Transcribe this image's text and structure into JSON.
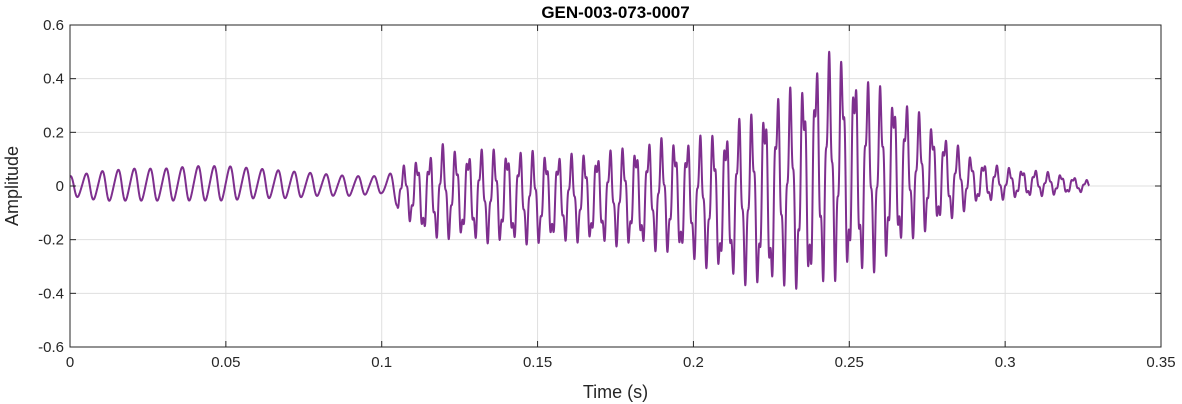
{
  "chart_data": {
    "type": "line",
    "title": "GEN-003-073-0007",
    "xlabel": "Time (s)",
    "ylabel": "Amplitude",
    "xlim": [
      0,
      0.35
    ],
    "ylim": [
      -0.6,
      0.6
    ],
    "xticks": [
      0,
      0.05,
      0.1,
      0.15,
      0.2,
      0.25,
      0.3,
      0.35
    ],
    "xtick_labels": [
      "0",
      "0.05",
      "0.1",
      "0.15",
      "0.2",
      "0.25",
      "0.3",
      "0.35"
    ],
    "yticks": [
      -0.6,
      -0.4,
      -0.2,
      0,
      0.2,
      0.4,
      0.6
    ],
    "ytick_labels": [
      "-0.6",
      "-0.4",
      "-0.2",
      "0",
      "0.2",
      "0.4",
      "0.6"
    ],
    "grid": true,
    "line_color": "#7E2F8E",
    "series": [
      {
        "x": [
          0,
          0.01,
          0.02,
          0.03,
          0.04,
          0.05,
          0.06,
          0.07,
          0.08,
          0.09,
          0.1,
          0.105,
          0.11,
          0.115,
          0.12,
          0.125,
          0.13,
          0.14,
          0.15,
          0.16,
          0.17,
          0.18,
          0.19,
          0.2,
          0.21,
          0.215,
          0.22,
          0.225,
          0.23,
          0.235,
          0.24,
          0.245,
          0.25,
          0.255,
          0.26,
          0.265,
          0.27,
          0.28,
          0.29,
          0.3,
          0.31,
          0.32,
          0.327
        ],
        "envelope_upper": [
          0.04,
          0.06,
          0.07,
          0.07,
          0.08,
          0.08,
          0.07,
          0.06,
          0.05,
          0.04,
          0.04,
          0.06,
          0.1,
          0.12,
          0.16,
          0.13,
          0.14,
          0.14,
          0.13,
          0.12,
          0.13,
          0.15,
          0.18,
          0.18,
          0.22,
          0.26,
          0.28,
          0.34,
          0.36,
          0.4,
          0.48,
          0.51,
          0.47,
          0.4,
          0.38,
          0.35,
          0.3,
          0.2,
          0.1,
          0.07,
          0.06,
          0.04,
          0.02
        ],
        "envelope_lower": [
          -0.04,
          -0.06,
          -0.06,
          -0.06,
          -0.06,
          -0.06,
          -0.05,
          -0.05,
          -0.04,
          -0.04,
          -0.03,
          -0.08,
          -0.15,
          -0.2,
          -0.2,
          -0.2,
          -0.21,
          -0.22,
          -0.22,
          -0.21,
          -0.22,
          -0.23,
          -0.25,
          -0.28,
          -0.35,
          -0.36,
          -0.39,
          -0.4,
          -0.37,
          -0.42,
          -0.38,
          -0.36,
          -0.35,
          -0.34,
          -0.31,
          -0.26,
          -0.2,
          -0.15,
          -0.07,
          -0.05,
          -0.04,
          -0.03,
          -0.02
        ]
      }
    ]
  }
}
